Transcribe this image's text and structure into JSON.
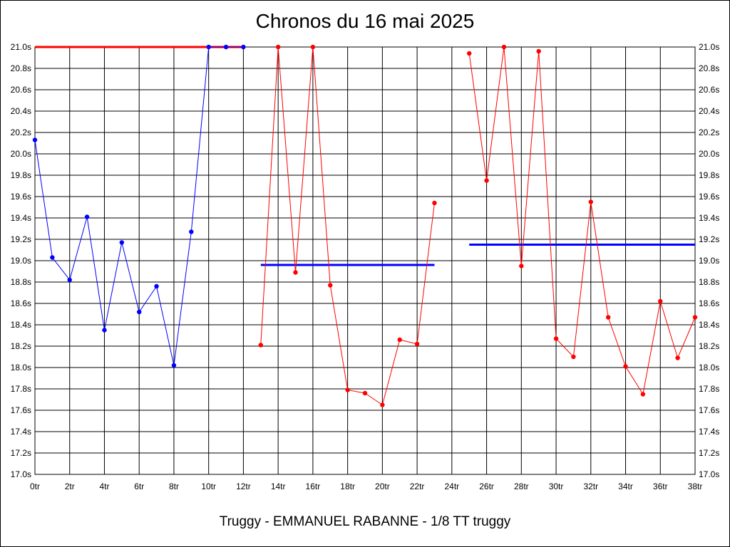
{
  "title": "Chronos du 16 mai 2025",
  "footer": "Truggy - EMMANUEL RABANNE - 1/8 TT truggy",
  "colors": {
    "series_1": "#0000ff",
    "series_2": "#ff0000",
    "best_line": "#ff0000",
    "avg_line": "#0000ff",
    "grid": "#000000"
  },
  "chart_data": {
    "type": "line",
    "title": "Chronos du 16 mai 2025",
    "xlabel": "",
    "ylabel": "",
    "xlim": [
      0,
      38
    ],
    "ylim": [
      17.0,
      21.0
    ],
    "grid": true,
    "y_ticks": [
      "17.0s",
      "17.2s",
      "17.4s",
      "17.6s",
      "17.8s",
      "18.0s",
      "18.2s",
      "18.4s",
      "18.6s",
      "18.8s",
      "19.0s",
      "19.2s",
      "19.4s",
      "19.6s",
      "19.8s",
      "20.0s",
      "20.2s",
      "20.4s",
      "20.6s",
      "20.8s",
      "21.0s"
    ],
    "x_ticks": [
      "0tr",
      "2tr",
      "4tr",
      "6tr",
      "8tr",
      "10tr",
      "12tr",
      "14tr",
      "16tr",
      "18tr",
      "20tr",
      "22tr",
      "24tr",
      "26tr",
      "28tr",
      "30tr",
      "32tr",
      "34tr",
      "36tr",
      "38tr"
    ],
    "series": [
      {
        "color": "#0000ff",
        "x": [
          0,
          1,
          2,
          3,
          4,
          5,
          6,
          7,
          8,
          9,
          10,
          11,
          12
        ],
        "values": [
          20.13,
          19.03,
          18.82,
          19.41,
          18.35,
          19.17,
          18.52,
          18.76,
          18.02,
          19.27,
          21.0,
          21.0,
          21.0
        ]
      },
      {
        "color": "#ff0000",
        "x": [
          13,
          14,
          15,
          16,
          17,
          18,
          19,
          20,
          21,
          22,
          23
        ],
        "values": [
          18.21,
          21.0,
          18.89,
          21.0,
          18.77,
          17.79,
          17.76,
          17.65,
          18.26,
          18.22,
          19.54
        ]
      },
      {
        "color": "#ff0000",
        "x": [
          25,
          26,
          27,
          28,
          29,
          30,
          31,
          32,
          33,
          34,
          35,
          36,
          37,
          38
        ],
        "values": [
          20.94,
          19.75,
          21.0,
          18.95,
          20.96,
          18.27,
          18.1,
          19.55,
          18.47,
          18.01,
          17.75,
          18.62,
          18.09,
          18.47
        ]
      }
    ],
    "reference_lines": [
      {
        "color": "#ff0000",
        "y": 21.0,
        "x_start": 0,
        "x_end": 12
      },
      {
        "color": "#0000ff",
        "y": 18.96,
        "x_start": 13,
        "x_end": 23
      },
      {
        "color": "#0000ff",
        "y": 19.15,
        "x_start": 25,
        "x_end": 38
      }
    ]
  }
}
